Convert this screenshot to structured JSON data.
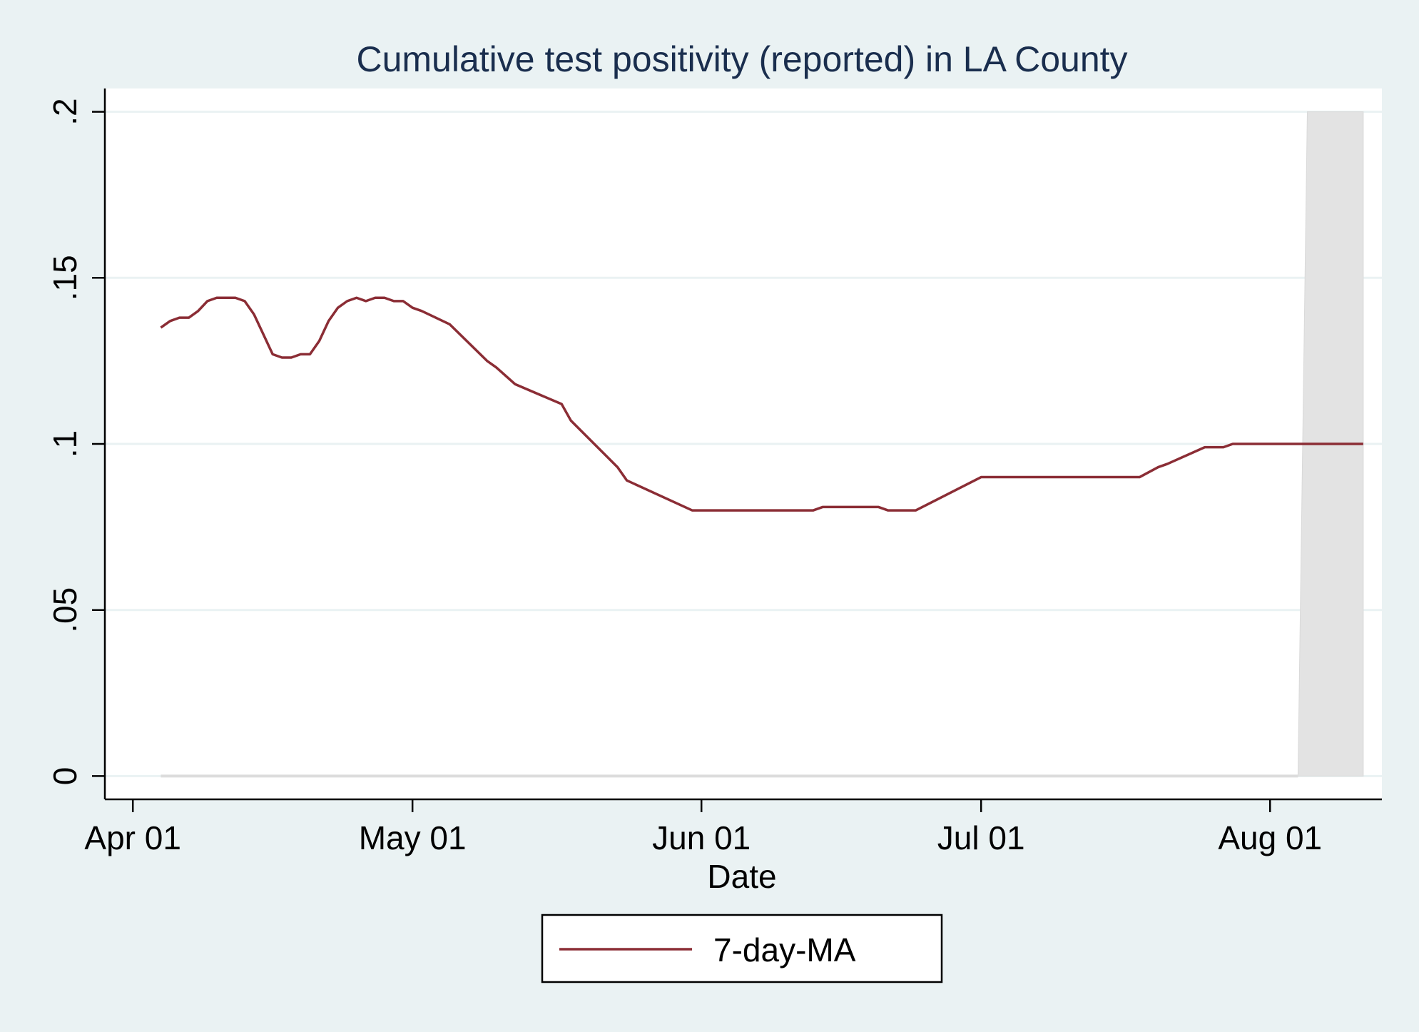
{
  "chart_data": {
    "type": "line",
    "title": "Cumulative test positivity (reported) in LA County",
    "xlabel": "Date",
    "ylabel": "",
    "x_ticks": [
      "Apr 01",
      "May 01",
      "Jun 01",
      "Jul 01",
      "Aug 01"
    ],
    "x_tick_dates": [
      "2020-04-01",
      "2020-05-01",
      "2020-06-01",
      "2020-07-01",
      "2020-08-01"
    ],
    "xlim": [
      "2020-03-29",
      "2020-08-13"
    ],
    "y_ticks": [
      0,
      0.05,
      0.1,
      0.15,
      0.2
    ],
    "y_tick_labels": [
      "0",
      ".05",
      ".1",
      ".15",
      ".2"
    ],
    "ylim": [
      -0.007,
      0.207
    ],
    "grid": true,
    "legend_position": "bottom",
    "shaded_area": {
      "color": "#e3e3e3",
      "x": [
        "2020-08-04",
        "2020-08-05",
        "2020-08-11"
      ],
      "y_low": [
        0,
        0,
        0
      ],
      "y_high": [
        0,
        0.2,
        0.2
      ]
    },
    "series": [
      {
        "name": "7-day-MA",
        "color": "#8b2d35",
        "x": [
          "2020-04-04",
          "2020-04-05",
          "2020-04-06",
          "2020-04-07",
          "2020-04-08",
          "2020-04-09",
          "2020-04-10",
          "2020-04-11",
          "2020-04-12",
          "2020-04-13",
          "2020-04-14",
          "2020-04-15",
          "2020-04-16",
          "2020-04-17",
          "2020-04-18",
          "2020-04-19",
          "2020-04-20",
          "2020-04-21",
          "2020-04-22",
          "2020-04-23",
          "2020-04-24",
          "2020-04-25",
          "2020-04-26",
          "2020-04-27",
          "2020-04-28",
          "2020-04-29",
          "2020-04-30",
          "2020-05-01",
          "2020-05-02",
          "2020-05-05",
          "2020-05-09",
          "2020-05-10",
          "2020-05-12",
          "2020-05-17",
          "2020-05-18",
          "2020-05-23",
          "2020-05-24",
          "2020-05-31",
          "2020-06-13",
          "2020-06-14",
          "2020-06-20",
          "2020-06-21",
          "2020-06-24",
          "2020-07-01",
          "2020-07-18",
          "2020-07-20",
          "2020-07-21",
          "2020-07-25",
          "2020-07-26",
          "2020-07-27",
          "2020-07-28",
          "2020-08-11"
        ],
        "y": [
          0.135,
          0.137,
          0.138,
          0.138,
          0.14,
          0.143,
          0.144,
          0.144,
          0.144,
          0.143,
          0.139,
          0.133,
          0.127,
          0.126,
          0.126,
          0.127,
          0.127,
          0.131,
          0.137,
          0.141,
          0.143,
          0.144,
          0.143,
          0.144,
          0.144,
          0.143,
          0.143,
          0.141,
          0.14,
          0.136,
          0.125,
          0.123,
          0.118,
          0.112,
          0.107,
          0.093,
          0.089,
          0.08,
          0.08,
          0.081,
          0.081,
          0.08,
          0.08,
          0.09,
          0.09,
          0.093,
          0.094,
          0.099,
          0.099,
          0.099,
          0.1,
          0.1
        ]
      }
    ]
  }
}
